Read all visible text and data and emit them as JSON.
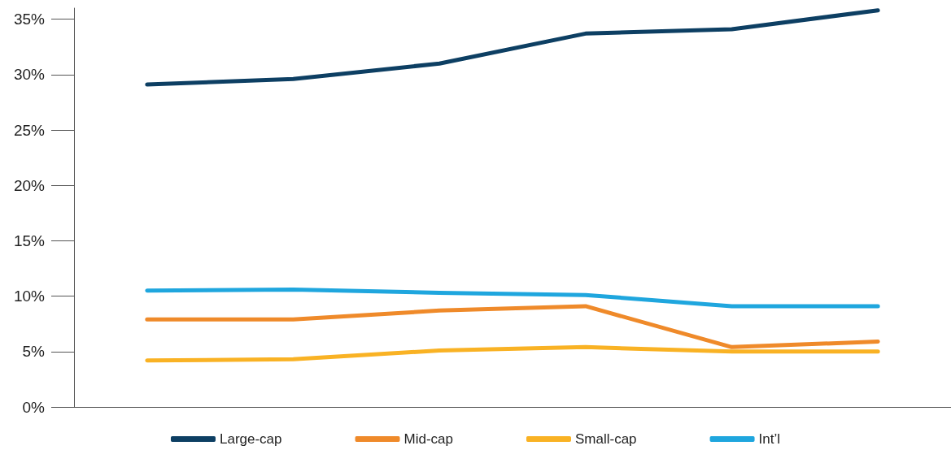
{
  "chart_data": {
    "type": "line",
    "categories": [
      null,
      null,
      null,
      null,
      null,
      null
    ],
    "series": [
      {
        "name": "Large-cap",
        "color": "#0d3f63",
        "values": [
          29.1,
          29.6,
          31.0,
          33.7,
          34.1,
          35.8
        ]
      },
      {
        "name": "Mid-cap",
        "color": "#ef8a2a",
        "values": [
          7.9,
          7.9,
          8.7,
          9.1,
          5.4,
          5.9
        ]
      },
      {
        "name": "Small-cap",
        "color": "#f9b224",
        "values": [
          4.2,
          4.3,
          5.1,
          5.4,
          5.0,
          5.0
        ]
      },
      {
        "name": "Int’l",
        "color": "#1fa6de",
        "values": [
          10.5,
          10.6,
          10.3,
          10.1,
          9.1,
          9.1
        ]
      }
    ],
    "ylim": [
      0,
      36
    ],
    "yticks": [
      {
        "value": 0,
        "label": "0%"
      },
      {
        "value": 5,
        "label": "5%"
      },
      {
        "value": 10,
        "label": "10%"
      },
      {
        "value": 15,
        "label": "15%"
      },
      {
        "value": 20,
        "label": "20%"
      },
      {
        "value": 25,
        "label": "25%"
      },
      {
        "value": 30,
        "label": "30%"
      },
      {
        "value": 35,
        "label": "35%"
      }
    ],
    "tick_labels": "y",
    "grid": false,
    "legend": "bottom",
    "marker": "none",
    "line_style": "solid"
  }
}
